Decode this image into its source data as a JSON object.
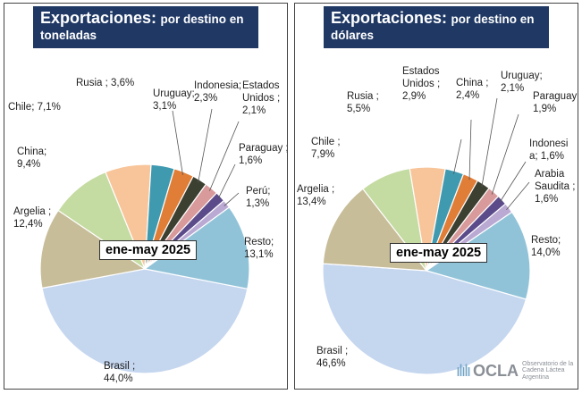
{
  "chart_data": [
    {
      "type": "pie",
      "title": "Exportaciones:",
      "subtitle": "por destino en toneladas",
      "period": "ene-may 2025",
      "slices": [
        {
          "label": "Brasil ;",
          "pct_text": "44,0%",
          "value": 44.0,
          "color": "#c5d6ef"
        },
        {
          "label": "Argelia ;",
          "pct_text": "12,4%",
          "value": 12.4,
          "color": "#c8bd99"
        },
        {
          "label": "China;",
          "pct_text": "9,4%",
          "value": 9.4,
          "color": "#c4dba1"
        },
        {
          "label": "Chile; 7,1%",
          "pct_text": "",
          "value": 7.1,
          "color": "#f8c59a"
        },
        {
          "label": "Rusia ; 3,6%",
          "pct_text": "",
          "value": 3.6,
          "color": "#3f9ab0"
        },
        {
          "label": "Uruguay;",
          "pct_text": "3,1%",
          "value": 3.1,
          "color": "#e07e37"
        },
        {
          "label": "Indonesia;",
          "pct_text": "2,3%",
          "value": 2.3,
          "color": "#3c4030"
        },
        {
          "label": "Estados Unidos ;",
          "pct_text": "2,1%",
          "value": 2.1,
          "color": "#d89a9a"
        },
        {
          "label": "Paraguay ;",
          "pct_text": "1,6%",
          "value": 1.6,
          "color": "#5b4b8a"
        },
        {
          "label": "Perú;",
          "pct_text": "1,3%",
          "value": 1.3,
          "color": "#b9a9d3"
        },
        {
          "label": "Resto;",
          "pct_text": "13,1%",
          "value": 13.1,
          "color": "#91c3d8"
        }
      ]
    },
    {
      "type": "pie",
      "title": "Exportaciones:",
      "subtitle": "por destino en dólares",
      "period": "ene-may 2025",
      "slices": [
        {
          "label": "Brasil ;",
          "pct_text": "46,6%",
          "value": 46.6,
          "color": "#c5d6ef"
        },
        {
          "label": "Argelia ;",
          "pct_text": "13,4%",
          "value": 13.4,
          "color": "#c8bd99"
        },
        {
          "label": "Chile ;",
          "pct_text": "7,9%",
          "value": 7.9,
          "color": "#c4dba1"
        },
        {
          "label": "Rusia ;",
          "pct_text": "5,5%",
          "value": 5.5,
          "color": "#f8c59a"
        },
        {
          "label": "Estados Unidos ;",
          "pct_text": "2,9%",
          "value": 2.9,
          "color": "#3f9ab0"
        },
        {
          "label": "China ;",
          "pct_text": "2,4%",
          "value": 2.4,
          "color": "#e07e37"
        },
        {
          "label": "Uruguay;",
          "pct_text": "2,1%",
          "value": 2.1,
          "color": "#3c4030"
        },
        {
          "label": "Paraguay ;",
          "pct_text": "1,9%",
          "value": 1.9,
          "color": "#d89a9a"
        },
        {
          "label": "Indonesia;",
          "pct_text": "1,6%",
          "value": 1.6,
          "color": "#5b4b8a"
        },
        {
          "label": "Arabia Saudita ;",
          "pct_text": "1,6%",
          "value": 1.6,
          "color": "#b9a9d3"
        },
        {
          "label": "Resto;",
          "pct_text": "14,0%",
          "value": 14.0,
          "color": "#91c3d8"
        }
      ]
    }
  ],
  "logo": {
    "name": "OCLA",
    "description": "Observatorio de la Cadena Láctea Argentina",
    "color": "#6fa3c7"
  }
}
